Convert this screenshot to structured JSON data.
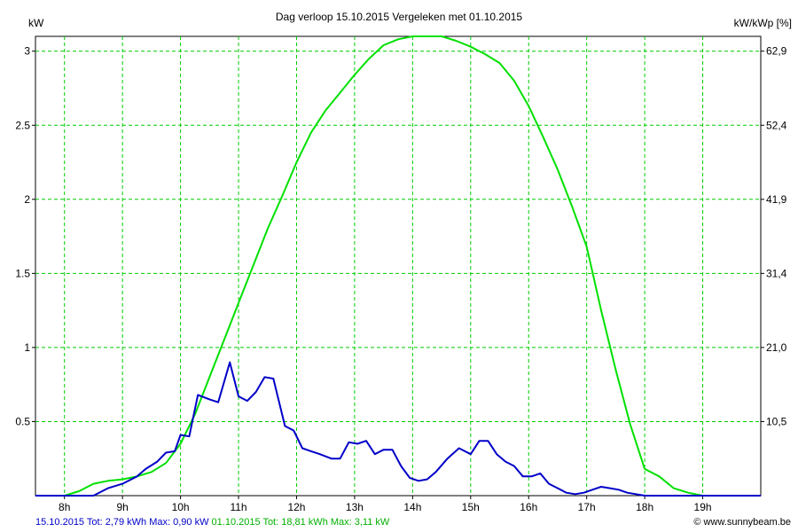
{
  "chart_data": {
    "type": "line",
    "title": "Dag  verloop 15.10.2015   Vergeleken met 01.10.2015",
    "y_left_label": "kW",
    "y_right_label": "kW/kWp [%]",
    "y_left_ticks": [
      "0.5",
      "1",
      "1.5",
      "2",
      "2.5",
      "3"
    ],
    "y_left_tick_values": [
      0.5,
      1,
      1.5,
      2,
      2.5,
      3
    ],
    "y_right_ticks": [
      "10,5",
      "21,0",
      "31,4",
      "41,9",
      "52,4",
      "62,9"
    ],
    "x_ticks": [
      "8h",
      "9h",
      "10h",
      "11h",
      "12h",
      "13h",
      "14h",
      "15h",
      "16h",
      "17h",
      "18h",
      "19h"
    ],
    "x_tick_values": [
      8,
      9,
      10,
      11,
      12,
      13,
      14,
      15,
      16,
      17,
      18,
      19
    ],
    "xlim": [
      7.5,
      20.0
    ],
    "ylim": [
      0,
      3.1
    ],
    "grid": true,
    "series": [
      {
        "name": "01.10.2015",
        "color": "#00e000",
        "x": [
          7.5,
          8.0,
          8.25,
          8.5,
          8.75,
          9.0,
          9.25,
          9.5,
          9.75,
          10.0,
          10.25,
          10.5,
          10.75,
          11.0,
          11.25,
          11.5,
          11.75,
          12.0,
          12.25,
          12.5,
          12.75,
          13.0,
          13.25,
          13.5,
          13.75,
          14.0,
          14.25,
          14.5,
          14.75,
          15.0,
          15.25,
          15.5,
          15.75,
          16.0,
          16.25,
          16.5,
          16.75,
          17.0,
          17.25,
          17.5,
          17.75,
          18.0,
          18.25,
          18.5,
          18.75,
          19.0,
          19.25,
          19.5,
          20.0
        ],
        "values": [
          0,
          0,
          0.03,
          0.08,
          0.1,
          0.11,
          0.13,
          0.16,
          0.22,
          0.35,
          0.55,
          0.8,
          1.05,
          1.3,
          1.55,
          1.8,
          2.02,
          2.25,
          2.45,
          2.6,
          2.72,
          2.84,
          2.95,
          3.04,
          3.08,
          3.1,
          3.1,
          3.1,
          3.07,
          3.03,
          2.98,
          2.92,
          2.8,
          2.63,
          2.42,
          2.2,
          1.95,
          1.68,
          1.25,
          0.85,
          0.48,
          0.18,
          0.13,
          0.05,
          0.02,
          0,
          0,
          0,
          0
        ]
      },
      {
        "name": "15.10.2015",
        "color": "#0000c8",
        "x": [
          7.5,
          8.5,
          8.75,
          9.0,
          9.25,
          9.4,
          9.6,
          9.75,
          9.9,
          10.0,
          10.15,
          10.3,
          10.5,
          10.65,
          10.85,
          11.0,
          11.15,
          11.3,
          11.45,
          11.6,
          11.8,
          11.95,
          12.1,
          12.25,
          12.4,
          12.6,
          12.75,
          12.9,
          13.05,
          13.2,
          13.35,
          13.5,
          13.65,
          13.8,
          13.95,
          14.1,
          14.25,
          14.4,
          14.6,
          14.8,
          15.0,
          15.15,
          15.3,
          15.45,
          15.6,
          15.75,
          15.9,
          16.05,
          16.2,
          16.35,
          16.5,
          16.65,
          16.8,
          16.95,
          17.1,
          17.25,
          17.4,
          17.55,
          17.7,
          17.85,
          18.0,
          18.5,
          19.0,
          20.0
        ],
        "values": [
          0,
          0,
          0.05,
          0.08,
          0.13,
          0.18,
          0.23,
          0.29,
          0.3,
          0.41,
          0.4,
          0.68,
          0.65,
          0.63,
          0.9,
          0.67,
          0.64,
          0.7,
          0.8,
          0.79,
          0.47,
          0.44,
          0.32,
          0.3,
          0.28,
          0.25,
          0.25,
          0.36,
          0.35,
          0.37,
          0.28,
          0.31,
          0.31,
          0.2,
          0.12,
          0.1,
          0.11,
          0.16,
          0.25,
          0.32,
          0.28,
          0.37,
          0.37,
          0.28,
          0.23,
          0.2,
          0.13,
          0.13,
          0.15,
          0.08,
          0.05,
          0.02,
          0.01,
          0.02,
          0.04,
          0.06,
          0.05,
          0.04,
          0.02,
          0.01,
          0,
          0,
          0,
          0
        ]
      }
    ]
  },
  "footer": {
    "blue_text": "15.10.2015 Tot: 2,79 kWh Max: 0,90 kW",
    "green_text": "01.10.2015 Tot: 18,81 kWh Max: 3,11 kW",
    "blue_color": "#0000c8",
    "green_color": "#00b000",
    "credit": "© www.sunnybeam.be"
  }
}
